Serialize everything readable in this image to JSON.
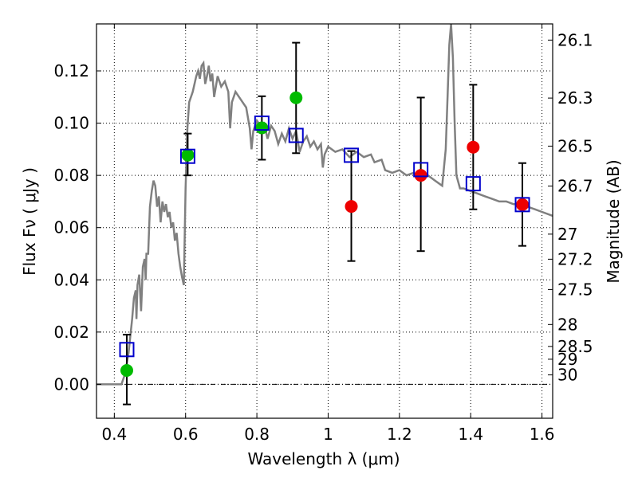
{
  "chart_data": {
    "type": "scatter",
    "xlabel": "Wavelength  λ (μm)",
    "ylabel": "Flux  Fν  ( μJy )",
    "ylabel_right": "Magnitude (AB)",
    "xlim": [
      0.35,
      1.63
    ],
    "ylim": [
      -0.013,
      0.138
    ],
    "x_ticks": [
      0.4,
      0.6,
      0.8,
      1.0,
      1.2,
      1.4,
      1.6
    ],
    "x_tick_labels": [
      "0.4",
      "0.6",
      "0.8",
      "1",
      "1.2",
      "1.4",
      "1.6"
    ],
    "y_ticks": [
      0.0,
      0.02,
      0.04,
      0.06,
      0.08,
      0.1,
      0.12
    ],
    "y_tick_labels": [
      "0.00",
      "0.02",
      "0.04",
      "0.06",
      "0.08",
      "0.10",
      "0.12"
    ],
    "mag_ticks": [
      {
        "label": "26.1",
        "flux": 0.1318
      },
      {
        "label": "26.3",
        "flux": 0.1096
      },
      {
        "label": "26.5",
        "flux": 0.0912
      },
      {
        "label": "26.7",
        "flux": 0.0759
      },
      {
        "label": "27",
        "flux": 0.0575
      },
      {
        "label": "27.2",
        "flux": 0.0479
      },
      {
        "label": "27.5",
        "flux": 0.0363
      },
      {
        "label": "28",
        "flux": 0.0229
      },
      {
        "label": "28.5",
        "flux": 0.0145
      },
      {
        "label": "29",
        "flux": 0.0096
      },
      {
        "label": "30",
        "flux": 0.0036
      }
    ],
    "grid": true,
    "zero_line": true,
    "colors": {
      "sed": "#808080",
      "detected": "#00bb00",
      "nondetected": "#ee0000",
      "model": "#0000cc",
      "errorbar": "#000000"
    },
    "series": [
      {
        "marker": "circle",
        "color": "#00bb00",
        "points": [
          {
            "x": 0.435,
            "y": 0.0053
          },
          {
            "x": 0.606,
            "y": 0.0878
          },
          {
            "x": 0.814,
            "y": 0.0982
          },
          {
            "x": 0.91,
            "y": 0.1097
          }
        ]
      },
      {
        "marker": "circle",
        "color": "#ee0000",
        "points": [
          {
            "x": 1.065,
            "y": 0.0681
          },
          {
            "x": 1.26,
            "y": 0.08
          },
          {
            "x": 1.407,
            "y": 0.0908
          },
          {
            "x": 1.545,
            "y": 0.0688
          }
        ]
      },
      {
        "marker": "square",
        "color": "#0000cc",
        "points": [
          {
            "x": 0.435,
            "y": 0.0133
          },
          {
            "x": 0.606,
            "y": 0.0873
          },
          {
            "x": 0.814,
            "y": 0.1
          },
          {
            "x": 0.91,
            "y": 0.0953
          },
          {
            "x": 1.065,
            "y": 0.0877
          },
          {
            "x": 1.26,
            "y": 0.0822
          },
          {
            "x": 1.407,
            "y": 0.0768
          },
          {
            "x": 1.545,
            "y": 0.0688
          }
        ]
      }
    ],
    "error_bars": [
      {
        "x": 0.435,
        "low": -0.0077,
        "high": 0.019
      },
      {
        "x": 0.606,
        "low": 0.08,
        "high": 0.096
      },
      {
        "x": 0.814,
        "low": 0.086,
        "high": 0.1103
      },
      {
        "x": 0.91,
        "low": 0.0885,
        "high": 0.1308
      },
      {
        "x": 1.065,
        "low": 0.0472,
        "high": 0.0893
      },
      {
        "x": 1.26,
        "low": 0.051,
        "high": 0.1098
      },
      {
        "x": 1.407,
        "low": 0.067,
        "high": 0.1147
      },
      {
        "x": 1.545,
        "low": 0.053,
        "high": 0.0847
      }
    ],
    "sed_curve": [
      [
        0.35,
        0.0
      ],
      [
        0.42,
        0.0
      ],
      [
        0.43,
        0.004
      ],
      [
        0.44,
        0.012
      ],
      [
        0.45,
        0.025
      ],
      [
        0.455,
        0.033
      ],
      [
        0.46,
        0.036
      ],
      [
        0.462,
        0.025
      ],
      [
        0.465,
        0.038
      ],
      [
        0.47,
        0.042
      ],
      [
        0.475,
        0.028
      ],
      [
        0.48,
        0.045
      ],
      [
        0.485,
        0.048
      ],
      [
        0.488,
        0.04
      ],
      [
        0.49,
        0.05
      ],
      [
        0.495,
        0.05
      ],
      [
        0.5,
        0.068
      ],
      [
        0.505,
        0.074
      ],
      [
        0.51,
        0.078
      ],
      [
        0.515,
        0.076
      ],
      [
        0.52,
        0.068
      ],
      [
        0.525,
        0.072
      ],
      [
        0.53,
        0.062
      ],
      [
        0.535,
        0.07
      ],
      [
        0.54,
        0.066
      ],
      [
        0.545,
        0.069
      ],
      [
        0.55,
        0.064
      ],
      [
        0.555,
        0.066
      ],
      [
        0.56,
        0.06
      ],
      [
        0.565,
        0.062
      ],
      [
        0.57,
        0.055
      ],
      [
        0.575,
        0.058
      ],
      [
        0.58,
        0.05
      ],
      [
        0.585,
        0.045
      ],
      [
        0.59,
        0.041
      ],
      [
        0.595,
        0.038
      ],
      [
        0.6,
        0.075
      ],
      [
        0.605,
        0.098
      ],
      [
        0.61,
        0.108
      ],
      [
        0.62,
        0.112
      ],
      [
        0.63,
        0.118
      ],
      [
        0.635,
        0.12
      ],
      [
        0.64,
        0.117
      ],
      [
        0.645,
        0.122
      ],
      [
        0.65,
        0.123
      ],
      [
        0.655,
        0.115
      ],
      [
        0.66,
        0.118
      ],
      [
        0.665,
        0.122
      ],
      [
        0.67,
        0.116
      ],
      [
        0.675,
        0.119
      ],
      [
        0.68,
        0.11
      ],
      [
        0.69,
        0.118
      ],
      [
        0.7,
        0.114
      ],
      [
        0.71,
        0.116
      ],
      [
        0.72,
        0.112
      ],
      [
        0.725,
        0.098
      ],
      [
        0.73,
        0.108
      ],
      [
        0.74,
        0.112
      ],
      [
        0.75,
        0.11
      ],
      [
        0.76,
        0.108
      ],
      [
        0.77,
        0.106
      ],
      [
        0.78,
        0.098
      ],
      [
        0.785,
        0.09
      ],
      [
        0.79,
        0.097
      ],
      [
        0.8,
        0.101
      ],
      [
        0.81,
        0.099
      ],
      [
        0.82,
        0.1
      ],
      [
        0.83,
        0.094
      ],
      [
        0.84,
        0.099
      ],
      [
        0.85,
        0.097
      ],
      [
        0.86,
        0.092
      ],
      [
        0.87,
        0.096
      ],
      [
        0.88,
        0.093
      ],
      [
        0.89,
        0.098
      ],
      [
        0.9,
        0.094
      ],
      [
        0.91,
        0.097
      ],
      [
        0.92,
        0.089
      ],
      [
        0.93,
        0.093
      ],
      [
        0.94,
        0.095
      ],
      [
        0.95,
        0.091
      ],
      [
        0.96,
        0.093
      ],
      [
        0.97,
        0.09
      ],
      [
        0.98,
        0.092
      ],
      [
        0.985,
        0.083
      ],
      [
        0.99,
        0.088
      ],
      [
        1.0,
        0.091
      ],
      [
        1.02,
        0.089
      ],
      [
        1.04,
        0.09
      ],
      [
        1.06,
        0.087
      ],
      [
        1.08,
        0.089
      ],
      [
        1.1,
        0.087
      ],
      [
        1.12,
        0.088
      ],
      [
        1.13,
        0.085
      ],
      [
        1.15,
        0.086
      ],
      [
        1.16,
        0.082
      ],
      [
        1.18,
        0.081
      ],
      [
        1.2,
        0.082
      ],
      [
        1.22,
        0.08
      ],
      [
        1.24,
        0.081
      ],
      [
        1.26,
        0.079
      ],
      [
        1.28,
        0.08
      ],
      [
        1.3,
        0.078
      ],
      [
        1.32,
        0.076
      ],
      [
        1.33,
        0.09
      ],
      [
        1.335,
        0.11
      ],
      [
        1.34,
        0.13
      ],
      [
        1.345,
        0.138
      ],
      [
        1.35,
        0.125
      ],
      [
        1.355,
        0.1
      ],
      [
        1.36,
        0.08
      ],
      [
        1.37,
        0.075
      ],
      [
        1.38,
        0.075
      ],
      [
        1.4,
        0.074
      ],
      [
        1.42,
        0.073
      ],
      [
        1.44,
        0.072
      ],
      [
        1.46,
        0.071
      ],
      [
        1.48,
        0.07
      ],
      [
        1.5,
        0.07
      ],
      [
        1.52,
        0.069
      ],
      [
        1.54,
        0.069
      ],
      [
        1.56,
        0.068
      ],
      [
        1.58,
        0.067
      ],
      [
        1.6,
        0.066
      ],
      [
        1.63,
        0.0645
      ]
    ]
  }
}
